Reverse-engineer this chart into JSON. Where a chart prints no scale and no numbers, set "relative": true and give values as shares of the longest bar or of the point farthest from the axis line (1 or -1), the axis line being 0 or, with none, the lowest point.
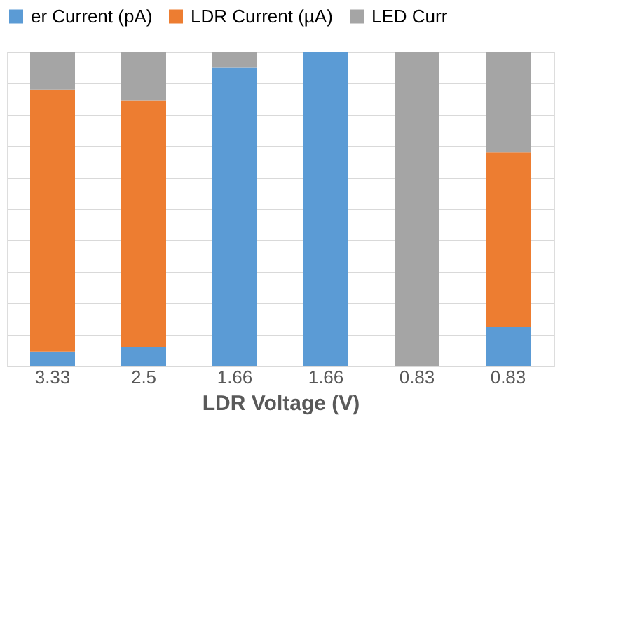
{
  "chart_data": {
    "type": "bar",
    "stacked": true,
    "relative": true,
    "xlabel": "LDR Voltage (V)",
    "legend": "top",
    "grid": "y",
    "categories": [
      "3.33",
      "2.5",
      "1.66",
      "1.66",
      "0.83",
      "0.83"
    ],
    "series": [
      {
        "name": "er Current (pA)",
        "color": "#5b9bd5",
        "values": [
          0.045,
          0.06,
          0.95,
          1.0,
          0,
          0.125
        ]
      },
      {
        "name": "LDR Current (µA)",
        "color": "#ed7d31",
        "values": [
          0.835,
          0.785,
          0,
          0,
          0,
          0.555
        ]
      },
      {
        "name": "LED Curr",
        "color": "#a5a5a5",
        "values": [
          0.12,
          0.155,
          0.05,
          0,
          1.0,
          0.32
        ]
      }
    ]
  }
}
